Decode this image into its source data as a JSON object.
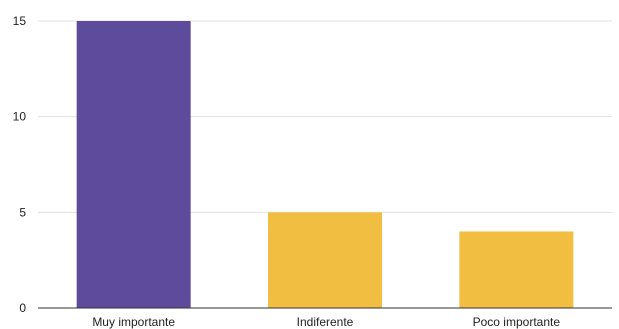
{
  "chart_data": {
    "type": "bar",
    "title": "",
    "xlabel": "",
    "ylabel": "",
    "categories": [
      "Muy importante",
      "Indiferente",
      "Poco importante"
    ],
    "values": [
      15,
      5,
      4
    ],
    "ylim": [
      0,
      15
    ],
    "yticks": [
      "0",
      "5",
      "10",
      "15"
    ],
    "grid": true,
    "legend": "none",
    "colors": [
      "#5f4b9c",
      "#f1be42",
      "#f1be42"
    ],
    "gridline_color": "#e0e0e0",
    "axis_color": "#333333"
  }
}
